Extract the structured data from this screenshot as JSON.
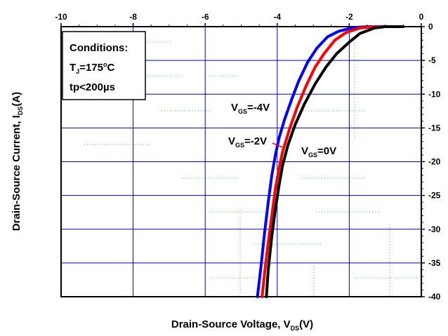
{
  "chart_data": {
    "type": "line",
    "xlabel": "Drain-Source Voltage, V",
    "xlabel_sub": "DS",
    "xlabel_unit": "(V)",
    "ylabel": "Drain-Source Current, I",
    "ylabel_sub": "DS",
    "ylabel_unit": "(A)",
    "xlim": [
      -10,
      0
    ],
    "ylim": [
      -40,
      0
    ],
    "x_ticks": [
      "-10",
      "-8",
      "-6",
      "-4",
      "-2",
      "0"
    ],
    "y_ticks": [
      "0",
      "-5",
      "-10",
      "-15",
      "-20",
      "-25",
      "-30",
      "-35",
      "-40"
    ],
    "x_axis_position": "top",
    "y_axis_position": "right",
    "grid": true,
    "conditions": {
      "title": "Conditions:",
      "tj_prefix": "T",
      "tj_sub": "J",
      "tj_value": "=175",
      "tj_sup": "o",
      "tj_unit": "C",
      "tp": "tp<200µs"
    },
    "series": [
      {
        "name_main": "V",
        "name_sub": "GS",
        "name_value": "=-4V",
        "color": "#0000ff",
        "points": [
          [
            -0.5,
            0
          ],
          [
            -1.5,
            0
          ],
          [
            -1.9,
            -0.15
          ],
          [
            -2.3,
            -0.7
          ],
          [
            -2.6,
            -1.5
          ],
          [
            -2.9,
            -3.2
          ],
          [
            -3.15,
            -5.2
          ],
          [
            -3.4,
            -8.0
          ],
          [
            -3.6,
            -10.8
          ],
          [
            -3.8,
            -13.8
          ],
          [
            -3.95,
            -16.5
          ],
          [
            -4.05,
            -19.0
          ],
          [
            -4.15,
            -22.0
          ],
          [
            -4.25,
            -26.0
          ],
          [
            -4.35,
            -30.5
          ],
          [
            -4.45,
            -35.5
          ],
          [
            -4.55,
            -40
          ]
        ]
      },
      {
        "name_main": "V",
        "name_sub": "GS",
        "name_value": "=-2V",
        "color": "#ff0000",
        "points": [
          [
            -0.5,
            0
          ],
          [
            -1.3,
            0
          ],
          [
            -1.7,
            -0.2
          ],
          [
            -2.1,
            -0.9
          ],
          [
            -2.4,
            -2.0
          ],
          [
            -2.7,
            -4.0
          ],
          [
            -2.95,
            -6.0
          ],
          [
            -3.2,
            -8.8
          ],
          [
            -3.45,
            -12.0
          ],
          [
            -3.65,
            -15.0
          ],
          [
            -3.85,
            -18.5
          ],
          [
            -3.95,
            -21.0
          ],
          [
            -4.05,
            -24.0
          ],
          [
            -4.15,
            -28.0
          ],
          [
            -4.25,
            -32.0
          ],
          [
            -4.35,
            -36.5
          ],
          [
            -4.42,
            -40
          ]
        ]
      },
      {
        "name_main": "V",
        "name_sub": "GS",
        "name_value": "=0V",
        "color": "#000000",
        "points": [
          [
            -0.5,
            0
          ],
          [
            -1.0,
            0
          ],
          [
            -1.3,
            -0.2
          ],
          [
            -1.7,
            -1.0
          ],
          [
            -2.0,
            -2.3
          ],
          [
            -2.35,
            -4.0
          ],
          [
            -2.65,
            -6.0
          ],
          [
            -2.95,
            -8.5
          ],
          [
            -3.25,
            -11.5
          ],
          [
            -3.5,
            -14.5
          ],
          [
            -3.7,
            -17.5
          ],
          [
            -3.85,
            -20.5
          ],
          [
            -3.95,
            -23.5
          ],
          [
            -4.05,
            -27.0
          ],
          [
            -4.15,
            -31.0
          ],
          [
            -4.25,
            -36.0
          ],
          [
            -4.3,
            -40
          ]
        ]
      }
    ]
  }
}
